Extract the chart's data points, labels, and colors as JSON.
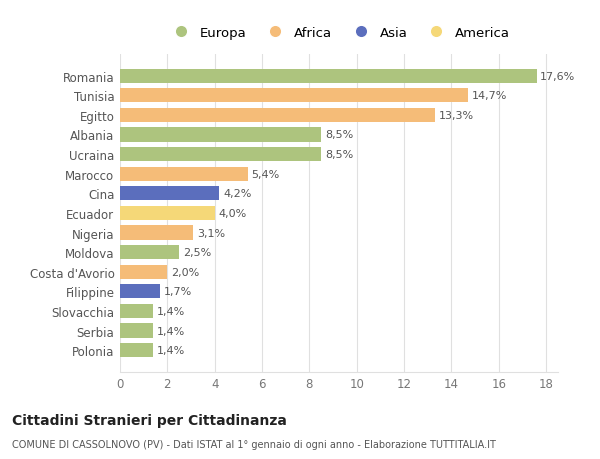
{
  "countries": [
    "Romania",
    "Tunisia",
    "Egitto",
    "Albania",
    "Ucraina",
    "Marocco",
    "Cina",
    "Ecuador",
    "Nigeria",
    "Moldova",
    "Costa d'Avorio",
    "Filippine",
    "Slovacchia",
    "Serbia",
    "Polonia"
  ],
  "values": [
    17.6,
    14.7,
    13.3,
    8.5,
    8.5,
    5.4,
    4.2,
    4.0,
    3.1,
    2.5,
    2.0,
    1.7,
    1.4,
    1.4,
    1.4
  ],
  "labels": [
    "17,6%",
    "14,7%",
    "13,3%",
    "8,5%",
    "8,5%",
    "5,4%",
    "4,2%",
    "4,0%",
    "3,1%",
    "2,5%",
    "2,0%",
    "1,7%",
    "1,4%",
    "1,4%",
    "1,4%"
  ],
  "continents": [
    "Europa",
    "Africa",
    "Africa",
    "Europa",
    "Europa",
    "Africa",
    "Asia",
    "America",
    "Africa",
    "Europa",
    "Africa",
    "Asia",
    "Europa",
    "Europa",
    "Europa"
  ],
  "colors": {
    "Europa": "#adc47e",
    "Africa": "#f5bc78",
    "Asia": "#5b6ebd",
    "America": "#f5d878"
  },
  "background_color": "#ffffff",
  "plot_bg_color": "#ffffff",
  "grid_color": "#e0e0e0",
  "title": "Cittadini Stranieri per Cittadinanza",
  "subtitle": "COMUNE DI CASSOLNOVO (PV) - Dati ISTAT al 1° gennaio di ogni anno - Elaborazione TUTTITALIA.IT",
  "xlim": [
    0,
    18.5
  ],
  "xticks": [
    0,
    2,
    4,
    6,
    8,
    10,
    12,
    14,
    16,
    18
  ],
  "bar_height": 0.72,
  "legend_order": [
    "Europa",
    "Africa",
    "Asia",
    "America"
  ]
}
